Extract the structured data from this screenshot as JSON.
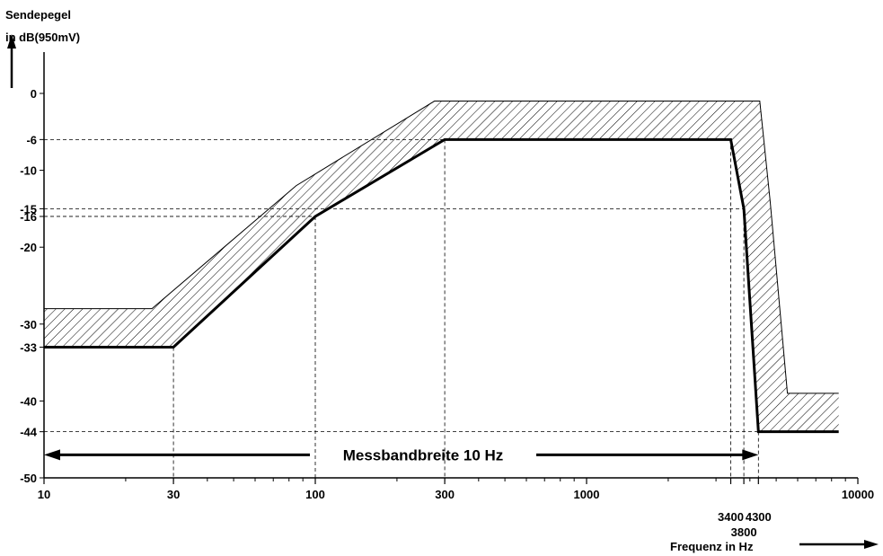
{
  "chart_data": {
    "type": "line",
    "ylabel_line1": "Sendepegel",
    "ylabel_line2": "in dB(950mV)",
    "xlabel": "Frequenz in Hz",
    "x_scale": "log",
    "xlim": [
      10,
      10000
    ],
    "ylim": [
      -50,
      0
    ],
    "y_ticks": [
      {
        "value": 0,
        "label": "0"
      },
      {
        "value": -6,
        "label": "-6"
      },
      {
        "value": -10,
        "label": "-10"
      },
      {
        "value": -15,
        "label": "-15"
      },
      {
        "value": -16,
        "label": "-16"
      },
      {
        "value": -20,
        "label": "-20"
      },
      {
        "value": -30,
        "label": "-30"
      },
      {
        "value": -33,
        "label": "-33"
      },
      {
        "value": -40,
        "label": "-40"
      },
      {
        "value": -44,
        "label": "-44"
      },
      {
        "value": -50,
        "label": "-50"
      }
    ],
    "x_ticks": [
      {
        "value": 10,
        "label": "10",
        "row": 0
      },
      {
        "value": 30,
        "label": "30",
        "row": 0
      },
      {
        "value": 100,
        "label": "100",
        "row": 0
      },
      {
        "value": 300,
        "label": "300",
        "row": 0
      },
      {
        "value": 1000,
        "label": "1000",
        "row": 0
      },
      {
        "value": 3400,
        "label": "3400",
        "row": 1
      },
      {
        "value": 3800,
        "label": "3800",
        "row": 2
      },
      {
        "value": 4300,
        "label": "4300",
        "row": 1
      },
      {
        "value": 10000,
        "label": "10000",
        "row": 0
      }
    ],
    "series": [
      {
        "role": "lower_limit",
        "x": [
          10,
          30,
          100,
          300,
          3400,
          3800,
          4300,
          8500
        ],
        "y": [
          -33,
          -33,
          -16,
          -6,
          -6,
          -15,
          -44,
          -44
        ]
      },
      {
        "role": "upper_limit",
        "x": [
          10,
          25,
          85,
          275,
          4350,
          4750,
          5500,
          8500
        ],
        "y": [
          -28,
          -28,
          -12,
          -1,
          -1,
          -14,
          -39,
          -39
        ]
      }
    ],
    "reference_lines": {
      "horizontal": [
        {
          "y": -6,
          "x_to": 3400
        },
        {
          "y": -15,
          "x_to": 3800
        },
        {
          "y": -16,
          "x_to": 100
        },
        {
          "y": -33,
          "x_to": 30
        },
        {
          "y": -44,
          "x_to": 4300
        }
      ],
      "vertical": [
        {
          "x": 30,
          "y_from": -33
        },
        {
          "x": 100,
          "y_from": -16
        },
        {
          "x": 300,
          "y_from": -6
        },
        {
          "x": 3400,
          "y_from": -6
        },
        {
          "x": 3800,
          "y_from": -15
        },
        {
          "x": 4300,
          "y_from": -44
        }
      ]
    },
    "annotation": {
      "text": "Messbandbreite 10 Hz",
      "x_from": 10,
      "x_to": 4300,
      "y": -47
    }
  }
}
